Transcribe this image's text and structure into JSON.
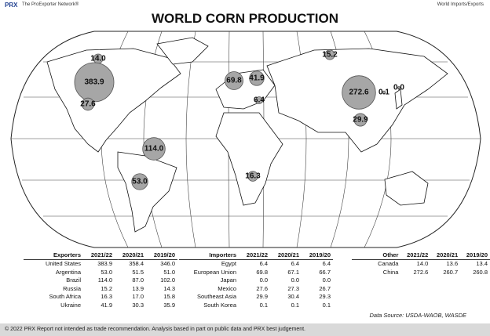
{
  "header": {
    "brand": "PRX",
    "network": "The ProExporter Network®",
    "section": "World Imports/Exports"
  },
  "title": "WORLD CORN PRODUCTION",
  "tables": [
    {
      "columns": [
        "Exporters",
        "2021/22",
        "2020/21",
        "2019/20"
      ],
      "rows": [
        [
          "United States",
          "383.9",
          "358.4",
          "346.0"
        ],
        [
          "Argentina",
          "53.0",
          "51.5",
          "51.0"
        ],
        [
          "Brazil",
          "114.0",
          "87.0",
          "102.0"
        ],
        [
          "Russia",
          "15.2",
          "13.9",
          "14.3"
        ],
        [
          "South Africa",
          "16.3",
          "17.0",
          "15.8"
        ],
        [
          "Ukraine",
          "41.9",
          "30.3",
          "35.9"
        ]
      ]
    },
    {
      "columns": [
        "Importers",
        "2021/22",
        "2020/21",
        "2019/20"
      ],
      "rows": [
        [
          "Egypt",
          "6.4",
          "6.4",
          "6.4"
        ],
        [
          "European Union",
          "69.8",
          "67.1",
          "66.7"
        ],
        [
          "Japan",
          "0.0",
          "0.0",
          "0.0"
        ],
        [
          "Mexico",
          "27.6",
          "27.3",
          "26.7"
        ],
        [
          "Southeast Asia",
          "29.9",
          "30.4",
          "29.3"
        ],
        [
          "South Korea",
          "0.1",
          "0.1",
          "0.1"
        ]
      ]
    },
    {
      "columns": [
        "Other",
        "2021/22",
        "2020/21",
        "2019/20"
      ],
      "rows": [
        [
          "Canada",
          "14.0",
          "13.6",
          "13.4"
        ],
        [
          "China",
          "272.6",
          "260.7",
          "260.8"
        ]
      ]
    }
  ],
  "source": "Data Source: USDA-WAOB, WASDE",
  "footer": "© 2022 PRX  Report not intended as trade recommendation. Analysis based in part on public data and PRX best judgement."
}
